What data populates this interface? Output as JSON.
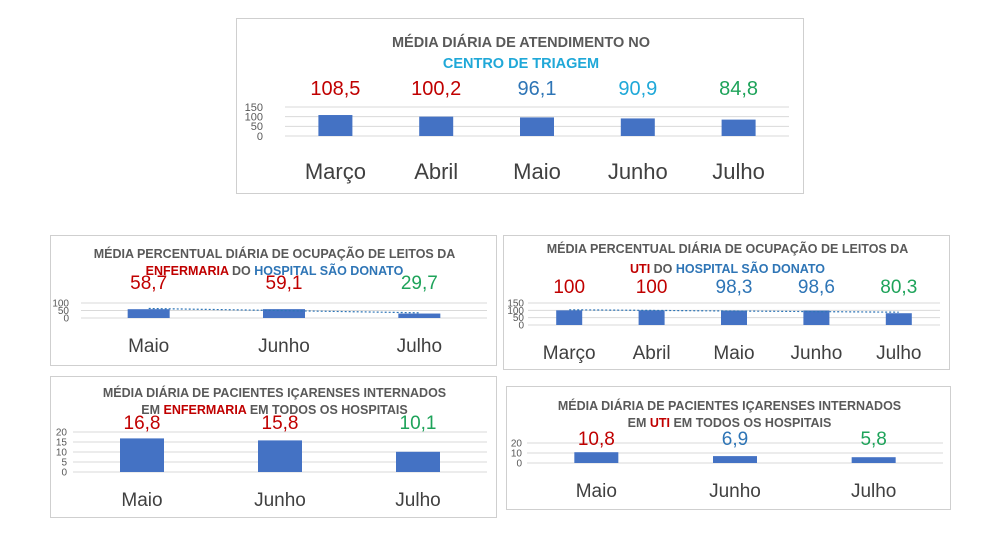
{
  "colors": {
    "bar": "#4472c4",
    "title": "#595959",
    "red": "#c00000",
    "blue": "#2e75b6",
    "cyan": "#1fa8d8",
    "green": "#1ea35a",
    "grid": "#d9d9d9",
    "trend": "#2e75b6"
  },
  "chart_data": [
    {
      "type": "bar",
      "title_lines": [
        [
          {
            "text": "MÉDIA DIÁRIA DE ATENDIMENTO NO",
            "color": "title"
          }
        ],
        [
          {
            "text": "CENTRO DE TRIAGEM",
            "color": "cyan"
          }
        ]
      ],
      "categories": [
        "Março",
        "Abril",
        "Maio",
        "Junho",
        "Julho"
      ],
      "values": [
        108.5,
        100.2,
        96.1,
        90.9,
        84.8
      ],
      "data_labels": [
        "108,5",
        "100,2",
        "96,1",
        "90,9",
        "84,8"
      ],
      "label_colors": [
        "red",
        "red",
        "blue",
        "cyan",
        "green"
      ],
      "y_ticks": [
        "0",
        "50",
        "100",
        "150"
      ],
      "ylim": [
        0,
        150
      ],
      "grid": true,
      "trendline": false
    },
    {
      "type": "bar",
      "title_lines": [
        [
          {
            "text": "MÉDIA PERCENTUAL DIÁRIA DE OCUPAÇÃO DE LEITOS DA",
            "color": "title"
          }
        ],
        [
          {
            "text": "ENFERMARIA",
            "color": "red"
          },
          {
            "text": " DO ",
            "color": "title"
          },
          {
            "text": "HOSPITAL SÃO DONATO",
            "color": "blue"
          }
        ]
      ],
      "categories": [
        "Maio",
        "Junho",
        "Julho"
      ],
      "values": [
        58.7,
        59.1,
        29.7
      ],
      "data_labels": [
        "58,7",
        "59,1",
        "29,7"
      ],
      "label_colors": [
        "red",
        "red",
        "green"
      ],
      "y_ticks": [
        "0",
        "50",
        "100"
      ],
      "ylim": [
        0,
        100
      ],
      "grid": true,
      "trendline": true
    },
    {
      "type": "bar",
      "title_lines": [
        [
          {
            "text": "MÉDIA PERCENTUAL DIÁRIA DE OCUPAÇÃO DE LEITOS DA",
            "color": "title"
          }
        ],
        [
          {
            "text": "UTI",
            "color": "red"
          },
          {
            "text": " DO ",
            "color": "title"
          },
          {
            "text": "HOSPITAL SÃO DONATO",
            "color": "blue"
          }
        ]
      ],
      "categories": [
        "Março",
        "Abril",
        "Maio",
        "Junho",
        "Julho"
      ],
      "values": [
        100,
        100,
        98.3,
        98.6,
        80.3
      ],
      "data_labels": [
        "100",
        "100",
        "98,3",
        "98,6",
        "80,3"
      ],
      "label_colors": [
        "red",
        "red",
        "blue",
        "blue",
        "green"
      ],
      "y_ticks": [
        "0",
        "50",
        "100",
        "150"
      ],
      "ylim": [
        0,
        150
      ],
      "grid": true,
      "trendline": true
    },
    {
      "type": "bar",
      "title_lines": [
        [
          {
            "text": "MÉDIA DIÁRIA DE PACIENTES IÇARENSES INTERNADOS",
            "color": "title"
          }
        ],
        [
          {
            "text": "EM ",
            "color": "title"
          },
          {
            "text": "ENFERMARIA",
            "color": "red"
          },
          {
            "text": " EM TODOS OS HOSPITAIS",
            "color": "title"
          }
        ]
      ],
      "categories": [
        "Maio",
        "Junho",
        "Julho"
      ],
      "values": [
        16.8,
        15.8,
        10.1
      ],
      "data_labels": [
        "16,8",
        "15,8",
        "10,1"
      ],
      "label_colors": [
        "red",
        "red",
        "green"
      ],
      "y_ticks": [
        "0",
        "5",
        "10",
        "15",
        "20"
      ],
      "ylim": [
        0,
        20
      ],
      "grid": true,
      "trendline": false
    },
    {
      "type": "bar",
      "title_lines": [
        [
          {
            "text": "MÉDIA DIÁRIA DE PACIENTES IÇARENSES INTERNADOS",
            "color": "title"
          }
        ],
        [
          {
            "text": "EM ",
            "color": "title"
          },
          {
            "text": "UTI",
            "color": "red"
          },
          {
            "text": " EM TODOS OS HOSPITAIS",
            "color": "title"
          }
        ]
      ],
      "categories": [
        "Maio",
        "Junho",
        "Julho"
      ],
      "values": [
        10.8,
        6.9,
        5.8
      ],
      "data_labels": [
        "10,8",
        "6,9",
        "5,8"
      ],
      "label_colors": [
        "red",
        "blue",
        "green"
      ],
      "y_ticks": [
        "0",
        "10",
        "20"
      ],
      "ylim": [
        0,
        20
      ],
      "grid": true,
      "trendline": false
    }
  ]
}
